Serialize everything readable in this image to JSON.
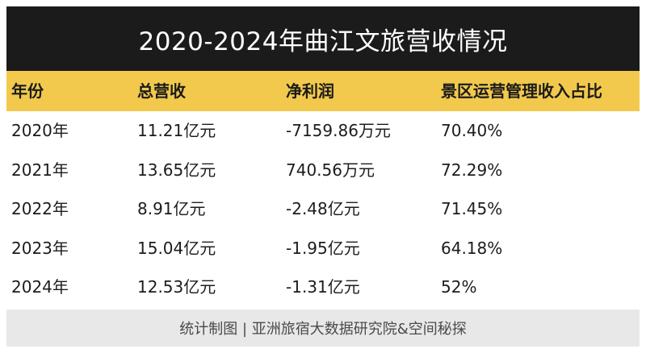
{
  "title": "2020-2024年曲江文旅营收情况",
  "columns": [
    "年份",
    "总营收",
    "净利润",
    "景区运营管理收入占比"
  ],
  "rows": [
    [
      "2020年",
      "11.21亿元",
      "-7159.86万元",
      "70.40%"
    ],
    [
      "2021年",
      "13.65亿元",
      "740.56万元",
      "72.29%"
    ],
    [
      "2022年",
      "8.91亿元",
      "-2.48亿元",
      "71.45%"
    ],
    [
      "2023年",
      "15.04亿元",
      "-1.95亿元",
      "64.18%"
    ],
    [
      "2024年",
      "12.53亿元",
      "-1.31亿元",
      "52%"
    ]
  ],
  "footer": "统计制图 | 亚洲旅宿大数据研究院&空间秘探",
  "colors": {
    "title_bg": "#1b1b1b",
    "header_bg": "#f2c94c",
    "footer_bg": "#e8e8e8"
  }
}
